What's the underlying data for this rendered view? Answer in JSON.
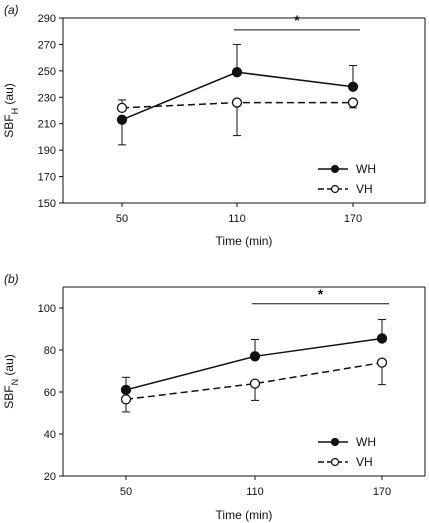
{
  "chart_data": [
    {
      "type": "line",
      "panel_label": "(a)",
      "categories": [
        "50",
        "110",
        "170"
      ],
      "x": [
        50,
        110,
        170
      ],
      "xlabel": "Time (min)",
      "ylabel_main": "SBF",
      "ylabel_sub": "H",
      "ylabel_unit": "(au)",
      "ylim": [
        150,
        290
      ],
      "yticks": [
        150,
        170,
        190,
        210,
        230,
        250,
        270,
        290
      ],
      "significance": {
        "label": "*",
        "from_x": 110,
        "to_x": 170,
        "y": 281
      },
      "series": [
        {
          "name": "WH",
          "values": [
            213,
            249,
            238
          ],
          "err": [
            19,
            21,
            16
          ],
          "err_dir": [
            -1,
            1,
            1
          ],
          "marker": "filled",
          "dash": "solid"
        },
        {
          "name": "VH",
          "values": [
            222,
            226,
            226
          ],
          "err": [
            6,
            25,
            4
          ],
          "err_dir": [
            1,
            -1,
            -1
          ],
          "marker": "open",
          "dash": "dashed"
        }
      ],
      "legend_position": "bottom-right",
      "grid": false
    },
    {
      "type": "line",
      "panel_label": "(b)",
      "categories": [
        "50",
        "110",
        "170"
      ],
      "x": [
        50,
        110,
        170
      ],
      "xlabel": "Time (min)",
      "ylabel_main": "SBF",
      "ylabel_sub": "N",
      "ylabel_unit": "(au)",
      "ylim": [
        20,
        110
      ],
      "yticks": [
        20,
        40,
        60,
        80,
        100
      ],
      "significance": {
        "label": "*",
        "from_x": 110,
        "to_x": 170,
        "y": 102
      },
      "series": [
        {
          "name": "WH",
          "values": [
            61,
            77,
            85.5
          ],
          "err": [
            6,
            8,
            9
          ],
          "err_dir": [
            1,
            1,
            1
          ],
          "marker": "filled",
          "dash": "solid"
        },
        {
          "name": "VH",
          "values": [
            56.5,
            64,
            74
          ],
          "err": [
            6,
            8,
            10.5
          ],
          "err_dir": [
            -1,
            -1,
            -1
          ],
          "marker": "open",
          "dash": "dashed"
        }
      ],
      "legend_position": "bottom-right",
      "grid": false
    }
  ]
}
